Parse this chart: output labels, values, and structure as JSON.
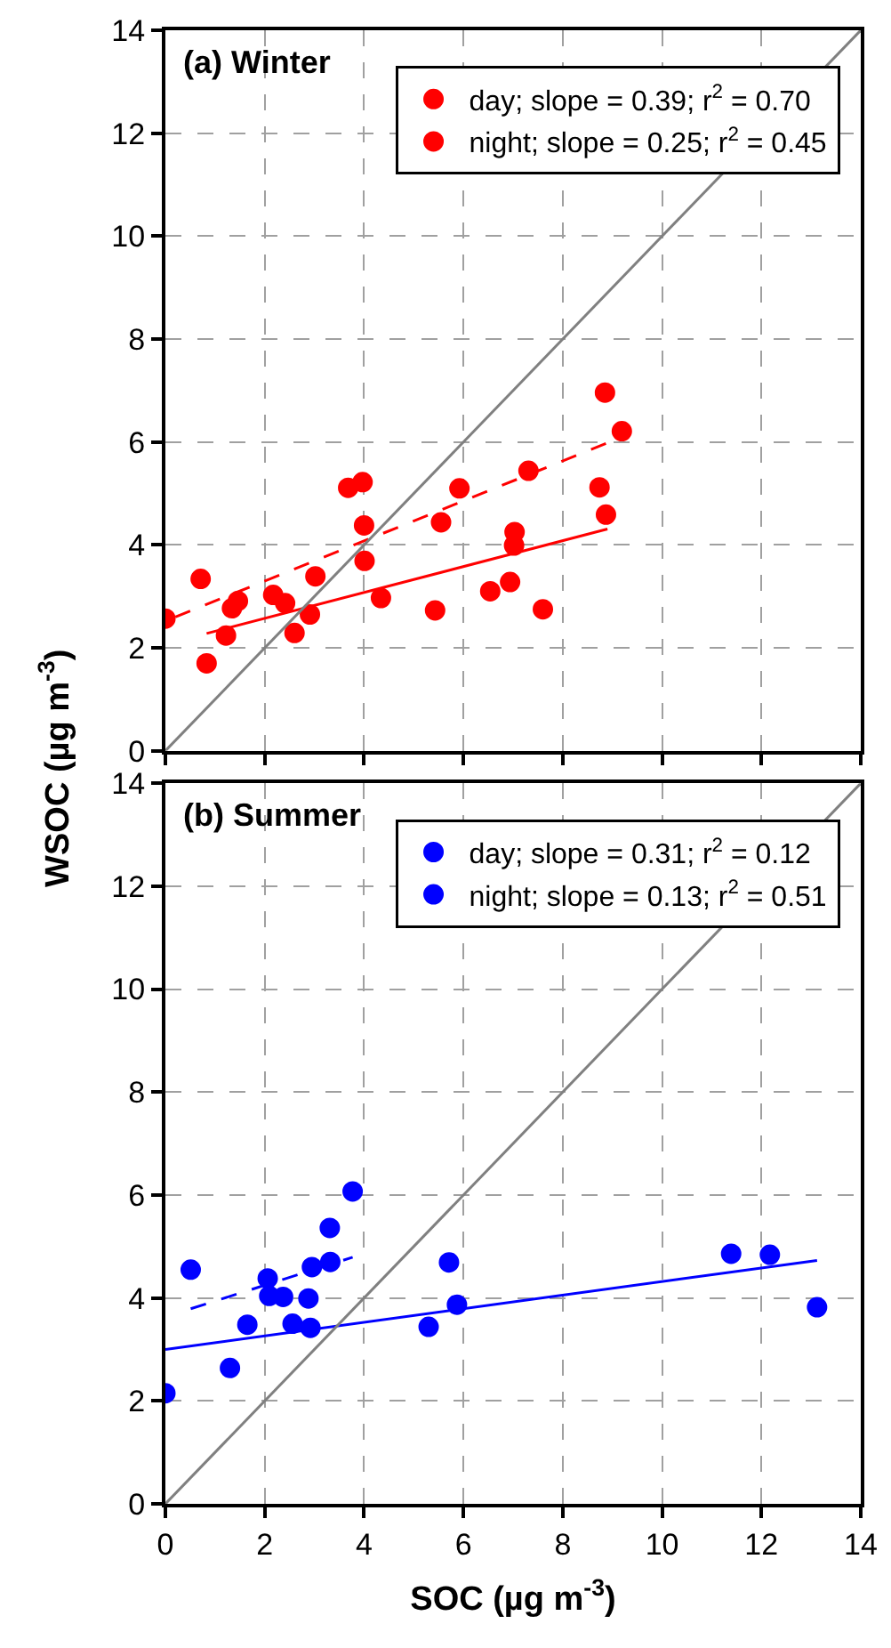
{
  "chart_data": [
    {
      "type": "scatter",
      "title": "(a) Winter",
      "ylabel": "WSOC (µg m$^{-3}$)",
      "xlim": [
        0,
        14
      ],
      "ylim": [
        0,
        14
      ],
      "xticks": [
        0,
        2,
        4,
        6,
        8,
        10,
        12,
        14
      ],
      "yticks": [
        0,
        2,
        4,
        6,
        8,
        10,
        12,
        14
      ],
      "grid": true,
      "legend": "top right",
      "tick_labels": "y",
      "series": [
        {
          "name": "day; slope = 0.39; r$^{2}$ = 0.70",
          "color": "#ff0000",
          "marker": "circle",
          "x": [
            0,
            0.71,
            1.34,
            2.17,
            2.41,
            2.91,
            3.02,
            3.68,
            3.97,
            5.92,
            7.02,
            7.03,
            7.31,
            8.85,
            9.19
          ],
          "values": [
            2.57,
            3.34,
            2.77,
            3.03,
            2.87,
            2.65,
            3.39,
            5.11,
            5.22,
            5.1,
            3.99,
            4.25,
            5.44,
            6.96,
            6.21
          ]
        },
        {
          "name": "night; slope = 0.25; r$^{2}$ = 0.45",
          "color": "#ff0000",
          "marker": "circle",
          "x": [
            0.83,
            1.22,
            1.46,
            2.6,
            4.0,
            4.01,
            4.34,
            5.43,
            5.55,
            6.54,
            6.94,
            7.6,
            8.74,
            8.87
          ],
          "values": [
            1.7,
            2.24,
            2.91,
            2.29,
            4.38,
            3.69,
            2.97,
            2.73,
            4.44,
            3.1,
            3.28,
            2.75,
            5.12,
            4.59
          ]
        },
        {
          "type": "line",
          "color": "#ff0000",
          "line_style": "dashed",
          "x": [
            0.2,
            9.2
          ],
          "values": [
            2.6,
            6.1
          ]
        },
        {
          "type": "line",
          "color": "#ff0000",
          "line_style": "solid",
          "x": [
            0.83,
            8.9
          ],
          "values": [
            2.28,
            4.31
          ]
        },
        {
          "type": "line",
          "color": "#808080",
          "line_style": "solid",
          "x": [
            0,
            14
          ],
          "values": [
            0,
            14
          ]
        }
      ]
    },
    {
      "type": "scatter",
      "title": "(b) Summer",
      "xlabel": "SOC (µg m$^{-3}$)",
      "xlim": [
        0,
        14
      ],
      "ylim": [
        0,
        14
      ],
      "xticks": [
        0,
        2,
        4,
        6,
        8,
        10,
        12,
        14
      ],
      "yticks": [
        0,
        2,
        4,
        6,
        8,
        10,
        12,
        14
      ],
      "grid": true,
      "legend": "top right",
      "series": [
        {
          "name": "day; slope = 0.31; r$^{2}$ = 0.12",
          "color": "#0000ff",
          "marker": "circle",
          "x": [
            0.51,
            2.06,
            2.37,
            2.56,
            2.88,
            2.92,
            2.95,
            3.32,
            3.31,
            3.77
          ],
          "values": [
            4.55,
            4.38,
            4.02,
            3.5,
            3.99,
            3.42,
            4.6,
            4.7,
            5.36,
            6.07
          ]
        },
        {
          "name": "night; slope = 0.13; r$^{2}$ = 0.51",
          "color": "#0000ff",
          "marker": "circle",
          "x": [
            0,
            1.3,
            1.65,
            2.09,
            5.3,
            5.71,
            5.87,
            11.39,
            12.17,
            13.12
          ],
          "values": [
            2.15,
            2.64,
            3.48,
            4.04,
            3.44,
            4.69,
            3.87,
            4.86,
            4.84,
            3.82
          ]
        },
        {
          "type": "line",
          "color": "#0000ff",
          "line_style": "dashed",
          "x": [
            0.51,
            3.77
          ],
          "values": [
            3.79,
            4.79
          ]
        },
        {
          "type": "line",
          "color": "#0000ff",
          "line_style": "solid",
          "x": [
            0,
            13.12
          ],
          "values": [
            3.0,
            4.73
          ]
        },
        {
          "type": "line",
          "color": "#808080",
          "line_style": "solid",
          "x": [
            0,
            14
          ],
          "values": [
            0,
            14
          ]
        }
      ]
    }
  ]
}
